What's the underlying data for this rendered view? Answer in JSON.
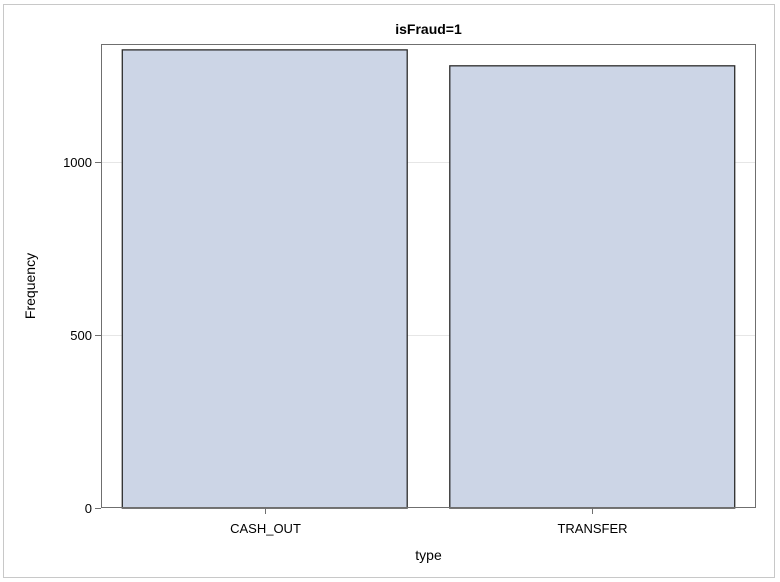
{
  "chart_data": {
    "type": "bar",
    "title": "isFraud=1",
    "xlabel": "type",
    "ylabel": "Frequency",
    "categories": [
      "CASH_OUT",
      "TRANSFER"
    ],
    "values": [
      1323,
      1277
    ],
    "ylim": [
      0,
      1340
    ],
    "yticks": [
      0,
      500,
      1000
    ],
    "grid": true,
    "colors": {
      "bar_fill": "#ccd5e6",
      "bar_stroke": "#2b2b2b",
      "grid": "#e6e6e6",
      "axis": "#6f6f6f"
    }
  }
}
